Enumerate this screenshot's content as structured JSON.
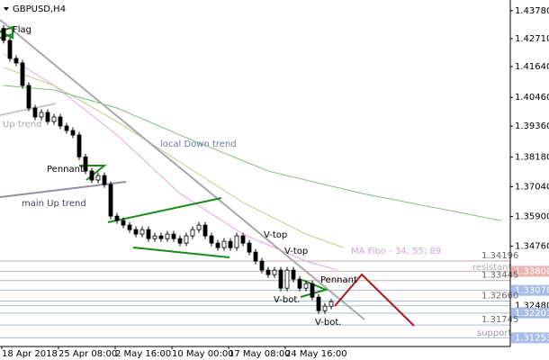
{
  "chart_data": {
    "type": "candlestick",
    "title": "GBPUSD,H4",
    "categories": [
      "18 Apr 2018",
      null,
      null,
      null,
      null,
      null,
      null,
      null,
      null,
      "25 Apr 08:00",
      null,
      null,
      null,
      null,
      null,
      null,
      null,
      null,
      "2 May 16:00",
      null,
      null,
      null,
      null,
      null,
      null,
      null,
      null,
      "10 May 00:00",
      null,
      null,
      null,
      null,
      null,
      null,
      null,
      null,
      "17 May 08:00",
      null,
      null,
      null,
      null,
      null,
      null,
      null,
      null,
      "24 May 16:00",
      null,
      null,
      null,
      null,
      null,
      null,
      null
    ],
    "open": [
      1.431,
      1.42642,
      1.41952,
      1.41779,
      1.40916,
      1.40054,
      1.39709,
      1.39882,
      1.39536,
      1.39709,
      1.39364,
      1.39191,
      1.39019,
      1.3818,
      1.37639,
      1.37294,
      1.37466,
      1.37121,
      1.35914,
      1.35741,
      1.35569,
      1.35396,
      1.35224,
      1.35396,
      1.35051,
      1.35155,
      1.35051,
      1.35224,
      1.35051,
      1.34879,
      1.35155,
      1.35396,
      1.35569,
      1.35155,
      1.34879,
      1.34706,
      1.34948,
      1.34706,
      1.35155,
      1.34879,
      1.34534,
      1.34189,
      1.33844,
      1.33671,
      1.33844,
      1.33154,
      1.33844,
      1.33499,
      1.33154,
      1.33326,
      1.32809,
      1.32291,
      1.32464
    ],
    "high": [
      1.4322,
      1.42762,
      1.42072,
      1.41899,
      1.41036,
      1.40174,
      1.40002,
      1.40002,
      1.39829,
      1.39829,
      1.39484,
      1.39311,
      1.39139,
      1.383,
      1.37759,
      1.37586,
      1.37586,
      1.37241,
      1.36034,
      1.35861,
      1.35689,
      1.35516,
      1.35516,
      1.35516,
      1.35275,
      1.35275,
      1.35344,
      1.35344,
      1.35171,
      1.35275,
      1.35516,
      1.35689,
      1.35689,
      1.35275,
      1.34999,
      1.35068,
      1.35068,
      1.35275,
      1.35275,
      1.34999,
      1.34654,
      1.34309,
      1.33964,
      1.33964,
      1.33964,
      1.33964,
      1.33964,
      1.33619,
      1.33446,
      1.33446,
      1.32929,
      1.32584,
      1.32756
    ],
    "low": [
      1.42522,
      1.41832,
      1.41659,
      1.40796,
      1.39934,
      1.39589,
      1.39589,
      1.39416,
      1.39416,
      1.39244,
      1.39071,
      1.38899,
      1.3806,
      1.37519,
      1.37174,
      1.37174,
      1.37001,
      1.35794,
      1.35621,
      1.35449,
      1.35276,
      1.35104,
      1.35104,
      1.34931,
      1.34931,
      1.34931,
      1.34931,
      1.34931,
      1.34759,
      1.34759,
      1.35035,
      1.35276,
      1.35035,
      1.34759,
      1.34586,
      1.34586,
      1.34586,
      1.34586,
      1.34759,
      1.34414,
      1.34069,
      1.33724,
      1.33551,
      1.33551,
      1.33034,
      1.33034,
      1.33379,
      1.33034,
      1.33034,
      1.32689,
      1.32171,
      1.32171,
      1.32344
    ],
    "close": [
      1.42642,
      1.41952,
      1.41779,
      1.40916,
      1.40054,
      1.39709,
      1.39882,
      1.39536,
      1.39709,
      1.39364,
      1.39191,
      1.39019,
      1.3818,
      1.37639,
      1.37294,
      1.37466,
      1.37121,
      1.35914,
      1.35741,
      1.35569,
      1.35396,
      1.35224,
      1.35396,
      1.35051,
      1.35155,
      1.35051,
      1.35224,
      1.35051,
      1.34879,
      1.35155,
      1.35396,
      1.35569,
      1.35155,
      1.34879,
      1.34706,
      1.34948,
      1.34706,
      1.35155,
      1.34879,
      1.34534,
      1.34189,
      1.33844,
      1.33671,
      1.33844,
      1.33154,
      1.33844,
      1.33499,
      1.33154,
      1.33326,
      1.32809,
      1.32291,
      1.32464,
      1.32636
    ],
    "moving_averages": [
      {
        "color": "#e0a8e0",
        "x": [
          0,
          8,
          18,
          28,
          38,
          48,
          53
        ],
        "values": [
          1.42124,
          1.40916,
          1.39019,
          1.36776,
          1.35224,
          1.34189,
          1.33844
        ]
      },
      {
        "color": "#c8c890",
        "x": [
          0,
          8,
          18,
          28,
          38,
          48,
          54
        ],
        "values": [
          1.41606,
          1.40916,
          1.39536,
          1.37984,
          1.36431,
          1.35224,
          1.34706
        ]
      },
      {
        "color": "#88b888",
        "x": [
          0,
          8,
          18,
          28,
          42,
          57,
          79
        ],
        "values": [
          1.40916,
          1.40744,
          1.40054,
          1.39019,
          1.37639,
          1.36776,
          1.35741
        ]
      }
    ],
    "ylim": [
      1.3092,
      1.4419
    ],
    "yticks": [
      {
        "value": 1.4378,
        "label": "1.43780"
      },
      {
        "value": 1.4271,
        "label": "1.42710"
      },
      {
        "value": 1.4164,
        "label": "1.41640"
      },
      {
        "value": 1.4046,
        "label": "1.40460"
      },
      {
        "value": 1.3936,
        "label": "1.39360"
      },
      {
        "value": 1.3818,
        "label": "1.38180"
      },
      {
        "value": 1.3704,
        "label": "1.37040"
      },
      {
        "value": 1.359,
        "label": "1.35900"
      },
      {
        "value": 1.3476,
        "label": "1.34760"
      }
    ],
    "levels": [
      {
        "value": 1.34196,
        "label": "1.34196",
        "color": "#c8a8a8",
        "marker": "text"
      },
      {
        "value": 1.338,
        "label": "1.33800",
        "color": "#e8b4b4",
        "marker": "box"
      },
      {
        "value": 1.33445,
        "label": "1.33445",
        "color": "#c8a8a8",
        "marker": "text"
      },
      {
        "value": 1.3307,
        "label": "1.33070",
        "color": "#a8bce8",
        "marker": "box"
      },
      {
        "value": 1.3266,
        "label": "1.32660",
        "color": "#a8bce8",
        "marker": "text"
      },
      {
        "value": 1.3248,
        "label": "1.32480",
        "color": "#a8bce8",
        "marker": "axis"
      },
      {
        "value": 1.32201,
        "label": "1.32201",
        "color": "#a8bce8",
        "marker": "box"
      },
      {
        "value": 1.31745,
        "label": "1.31745",
        "color": "#a8bce8",
        "marker": "text"
      },
      {
        "value": 1.31253,
        "label": "1.31253",
        "color": "#a8bce8",
        "marker": "box"
      }
    ],
    "annotations": [
      "Flag",
      "Up trend",
      "Pennant",
      "main Up trend",
      "local Down trend",
      "V-top",
      "V-top",
      "MA Fibo - 34; 55; 89",
      "resistant",
      "Pennant",
      "V-bot.",
      "V-bot.",
      "support"
    ]
  }
}
